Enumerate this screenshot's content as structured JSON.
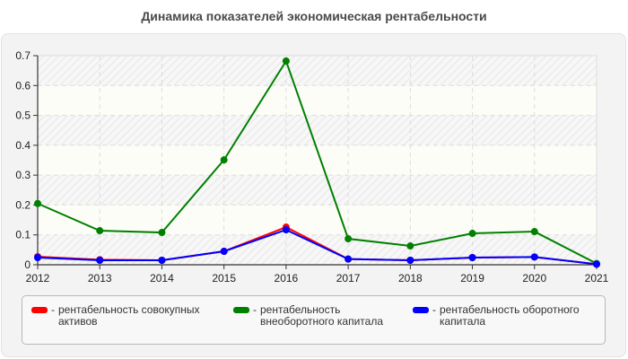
{
  "chart_data": {
    "type": "line",
    "title": "Динамика показателей экономическая рентабельности",
    "xlabel": "",
    "ylabel": "",
    "x": [
      "2012",
      "2013",
      "2014",
      "2015",
      "2016",
      "2017",
      "2018",
      "2019",
      "2020",
      "2021"
    ],
    "ylim": [
      0,
      0.7
    ],
    "yticks": [
      "0",
      "0.1",
      "0.2",
      "0.3",
      "0.4",
      "0.5",
      "0.6",
      "0.7"
    ],
    "grid": true,
    "legend_position": "bottom",
    "series": [
      {
        "name": "рентабельность совокупных активов",
        "color": "#ff0000",
        "values": [
          0.027,
          0.017,
          0.015,
          0.045,
          0.126,
          0.019,
          0.015,
          0.024,
          0.026,
          0.002
        ]
      },
      {
        "name": "рентабельность внеоборотного капитала",
        "color": "#008000",
        "values": [
          0.205,
          0.114,
          0.108,
          0.351,
          0.682,
          0.087,
          0.063,
          0.105,
          0.111,
          0.004
        ]
      },
      {
        "name": "рентабельность оборотного капитала",
        "color": "#0000ff",
        "values": [
          0.024,
          0.015,
          0.015,
          0.045,
          0.117,
          0.019,
          0.015,
          0.024,
          0.026,
          0.002
        ]
      }
    ]
  },
  "legend": {
    "dash": "-",
    "items": [
      {
        "label": "рентабельность совокупных активов",
        "color": "#ff0000"
      },
      {
        "label": "рентабельность внеоборотного капитала",
        "color": "#008000"
      },
      {
        "label": "рентабельность оборотного капитала",
        "color": "#0000ff"
      }
    ]
  }
}
